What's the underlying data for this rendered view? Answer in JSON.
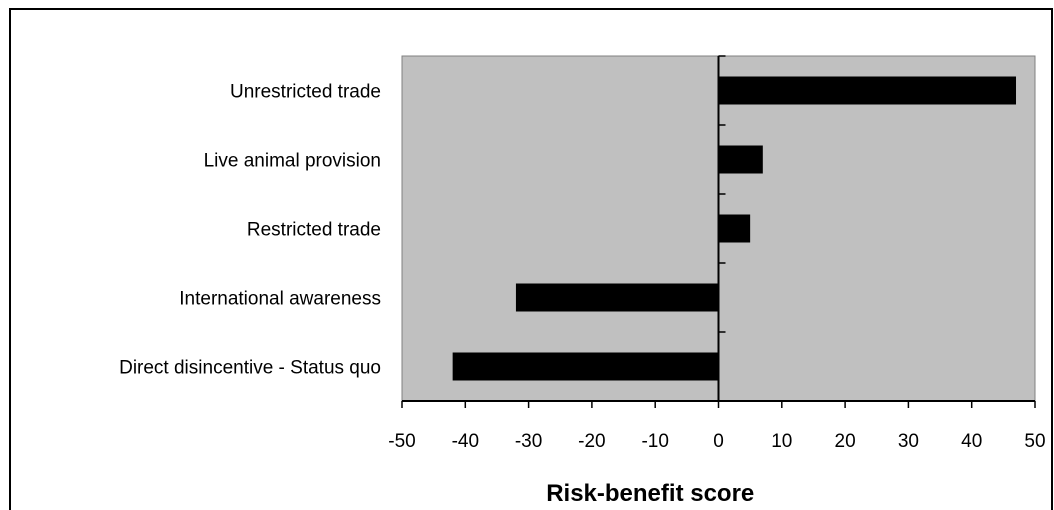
{
  "chart_data": {
    "type": "bar",
    "orientation": "horizontal",
    "categories": [
      "Unrestricted trade",
      "Live animal provision",
      "Restricted trade",
      "International awareness",
      "Direct disincentive - Status quo"
    ],
    "values": [
      47,
      7,
      5,
      -32,
      -42
    ],
    "xlabel": "Risk-benefit score",
    "xlim": [
      -50,
      50
    ],
    "xticks": [
      -50,
      -40,
      -30,
      -20,
      -10,
      0,
      10,
      20,
      30,
      40,
      50
    ],
    "grid": false,
    "plot_background": "#c0c0c0",
    "bar_color": "#000000"
  }
}
